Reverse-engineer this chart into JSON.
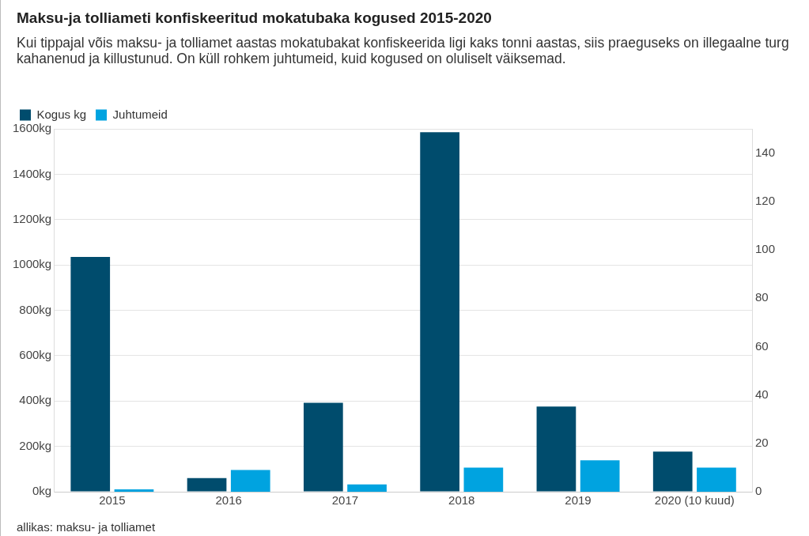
{
  "chart_data": {
    "type": "bar",
    "title": "Maksu-ja tolliameti konfiskeeritud mokatubaka kogused 2015-2020",
    "subtitle": "Kui tippajal võis maksu- ja tolliamet aastas mokatubakat konfiskeerida ligi kaks tonni aastas, siis praeguseks on illegaalne turg kahanenud ja killustunud. On küll rohkem juhtumeid, kuid kogused on oluliselt väiksemad.",
    "annotations": [
      "allikas: maksu- ja tolliamet"
    ],
    "categories": [
      "2015",
      "2016",
      "2017",
      "2018",
      "2019",
      "2020 (10 kuud)"
    ],
    "series": [
      {
        "name": "Kogus kg",
        "color": "#004c6d",
        "values": [
          1035,
          60,
          392,
          1585,
          376,
          177
        ]
      },
      {
        "name": "Juhtumeid",
        "color": "#00a3e0",
        "values": [
          1,
          9,
          3,
          10,
          13,
          10
        ],
        "axis": "y2"
      }
    ],
    "ylim": [
      0,
      1600
    ],
    "yticks": [
      {
        "value": 0,
        "label": "0kg"
      },
      {
        "value": 200,
        "label": "200kg"
      },
      {
        "value": 400,
        "label": "400kg"
      },
      {
        "value": 600,
        "label": "600kg"
      },
      {
        "value": 800,
        "label": "800kg"
      },
      {
        "value": 1000,
        "label": "1000kg"
      },
      {
        "value": 1200,
        "label": "1200kg"
      },
      {
        "value": 1400,
        "label": "1400kg"
      },
      {
        "value": 1600,
        "label": "1600kg"
      }
    ],
    "y2lim": [
      0,
      150
    ],
    "y2ticks": [
      0,
      20,
      40,
      60,
      80,
      100,
      120,
      140
    ],
    "grid": "y",
    "legend": "top left"
  }
}
